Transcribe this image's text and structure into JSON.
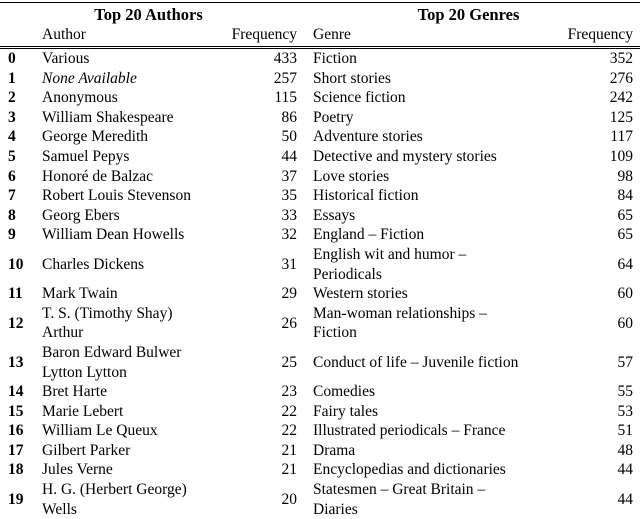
{
  "table": {
    "sections": [
      {
        "title": "Top 20 Authors",
        "col1": "Author",
        "col2": "Frequency"
      },
      {
        "title": "Top 20 Genres",
        "col1": "Genre",
        "col2": "Frequency"
      }
    ],
    "rows": [
      {
        "index": "0",
        "author": "Various",
        "author_freq": "433",
        "genre": "Fiction",
        "genre_freq": "352"
      },
      {
        "index": "1",
        "author": "None Available",
        "author_style": "italic",
        "author_freq": "257",
        "genre": "Short stories",
        "genre_freq": "276"
      },
      {
        "index": "2",
        "author": "Anonymous",
        "author_freq": "115",
        "genre": "Science fiction",
        "genre_freq": "242"
      },
      {
        "index": "3",
        "author": "William Shakespeare",
        "author_freq": "86",
        "genre": "Poetry",
        "genre_freq": "125"
      },
      {
        "index": "4",
        "author": "George Meredith",
        "author_freq": "50",
        "genre": "Adventure stories",
        "genre_freq": "117"
      },
      {
        "index": "5",
        "author": "Samuel Pepys",
        "author_freq": "44",
        "genre": "Detective and mystery stories",
        "genre_freq": "109"
      },
      {
        "index": "6",
        "author": "Honoré de Balzac",
        "author_freq": "37",
        "genre": "Love stories",
        "genre_freq": "98"
      },
      {
        "index": "7",
        "author": "Robert Louis Stevenson",
        "author_freq": "35",
        "genre": "Historical fiction",
        "genre_freq": "84"
      },
      {
        "index": "8",
        "author": "Georg Ebers",
        "author_freq": "33",
        "genre": "Essays",
        "genre_freq": "65"
      },
      {
        "index": "9",
        "author": "William Dean Howells",
        "author_freq": "32",
        "genre": "England – Fiction",
        "genre_freq": "65"
      },
      {
        "index": "10",
        "author": "Charles Dickens",
        "author_freq": "31",
        "genre": "English wit and humor –\nPeriodicals",
        "genre_freq": "64"
      },
      {
        "index": "11",
        "author": "Mark Twain",
        "author_freq": "29",
        "genre": "Western stories",
        "genre_freq": "60"
      },
      {
        "index": "12",
        "author": "T. S. (Timothy Shay)\nArthur",
        "author_freq": "26",
        "genre": "Man-woman relationships –\nFiction",
        "genre_freq": "60"
      },
      {
        "index": "13",
        "author": "Baron Edward Bulwer\nLytton Lytton",
        "author_freq": "25",
        "genre": "Conduct of life – Juvenile fiction",
        "genre_freq": "57"
      },
      {
        "index": "14",
        "author": "Bret Harte",
        "author_freq": "23",
        "genre": "Comedies",
        "genre_freq": "55"
      },
      {
        "index": "15",
        "author": "Marie Lebert",
        "author_freq": "22",
        "genre": "Fairy tales",
        "genre_freq": "53"
      },
      {
        "index": "16",
        "author": "William Le Queux",
        "author_freq": "22",
        "genre": "Illustrated periodicals – France",
        "genre_freq": "51"
      },
      {
        "index": "17",
        "author": "Gilbert Parker",
        "author_freq": "21",
        "genre": "Drama",
        "genre_freq": "48"
      },
      {
        "index": "18",
        "author": "Jules Verne",
        "author_freq": "21",
        "genre": "Encyclopedias and dictionaries",
        "genre_freq": "44"
      },
      {
        "index": "19",
        "author": "H. G. (Herbert George)\nWells",
        "author_freq": "20",
        "genre": "Statesmen – Great Britain –\nDiaries",
        "genre_freq": "44"
      }
    ]
  }
}
